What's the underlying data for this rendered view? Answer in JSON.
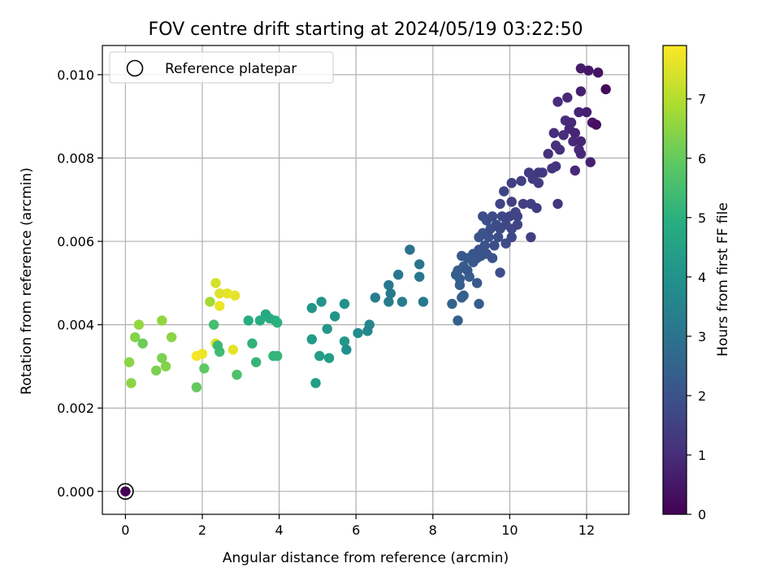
{
  "chart_data": {
    "type": "scatter",
    "title": "FOV centre drift starting at 2024/05/19 03:22:50",
    "xlabel": "Angular distance from reference (arcmin)",
    "ylabel": "Rotation from reference (arcmin)",
    "xlim": [
      -0.6,
      13.1
    ],
    "ylim": [
      -0.00055,
      0.0107
    ],
    "xticks": [
      0,
      2,
      4,
      6,
      8,
      10,
      12
    ],
    "xtick_labels": [
      "0",
      "2",
      "4",
      "6",
      "8",
      "10",
      "12"
    ],
    "yticks": [
      0.0,
      0.002,
      0.004,
      0.006,
      0.008,
      0.01
    ],
    "ytick_labels": [
      "0.000",
      "0.002",
      "0.004",
      "0.006",
      "0.008",
      "0.010"
    ],
    "grid": true,
    "legend": {
      "placement": "upper-left",
      "entries": [
        "Reference platepar"
      ]
    },
    "reference_point": {
      "name": "Reference platepar",
      "x": 0.0,
      "y": 0.0
    },
    "colorbar": {
      "label": "Hours from first FF file",
      "colormap": "viridis",
      "range": [
        0,
        7.9
      ],
      "ticks": [
        0,
        1,
        2,
        3,
        4,
        5,
        6,
        7
      ],
      "tick_labels": [
        "0",
        "1",
        "2",
        "3",
        "4",
        "5",
        "6",
        "7"
      ]
    },
    "series": [
      {
        "color_by": "hours",
        "points": [
          [
            0.0,
            0.0,
            0.0
          ],
          [
            12.5,
            0.00965,
            0.2
          ],
          [
            12.3,
            0.01005,
            0.4
          ],
          [
            12.05,
            0.0101,
            0.5
          ],
          [
            11.85,
            0.01015,
            0.6
          ],
          [
            12.25,
            0.0088,
            0.3
          ],
          [
            12.15,
            0.00885,
            0.5
          ],
          [
            12.0,
            0.0091,
            0.7
          ],
          [
            11.8,
            0.0091,
            0.8
          ],
          [
            11.85,
            0.0096,
            0.7
          ],
          [
            11.5,
            0.00945,
            0.9
          ],
          [
            11.25,
            0.00935,
            1.0
          ],
          [
            11.6,
            0.00885,
            0.9
          ],
          [
            11.45,
            0.0089,
            1.0
          ],
          [
            11.55,
            0.0087,
            0.9
          ],
          [
            11.7,
            0.0086,
            0.8
          ],
          [
            11.65,
            0.0084,
            0.9
          ],
          [
            11.85,
            0.0084,
            0.8
          ],
          [
            11.4,
            0.00855,
            1.0
          ],
          [
            11.15,
            0.0086,
            1.0
          ],
          [
            11.3,
            0.0082,
            1.1
          ],
          [
            11.2,
            0.0083,
            1.1
          ],
          [
            11.85,
            0.0081,
            0.9
          ],
          [
            11.8,
            0.0082,
            0.9
          ],
          [
            12.1,
            0.0079,
            0.7
          ],
          [
            11.7,
            0.0077,
            0.9
          ],
          [
            11.0,
            0.0081,
            1.1
          ],
          [
            11.2,
            0.0078,
            1.2
          ],
          [
            11.1,
            0.00775,
            1.2
          ],
          [
            10.85,
            0.00765,
            1.3
          ],
          [
            10.75,
            0.00765,
            1.3
          ],
          [
            10.5,
            0.00765,
            1.4
          ],
          [
            10.6,
            0.0075,
            1.4
          ],
          [
            10.75,
            0.0074,
            1.4
          ],
          [
            10.3,
            0.00745,
            1.5
          ],
          [
            10.05,
            0.0074,
            1.5
          ],
          [
            9.85,
            0.0072,
            1.6
          ],
          [
            10.35,
            0.0069,
            1.5
          ],
          [
            10.55,
            0.0069,
            1.5
          ],
          [
            10.7,
            0.0068,
            1.4
          ],
          [
            11.25,
            0.0069,
            1.2
          ],
          [
            10.05,
            0.00695,
            1.5
          ],
          [
            9.75,
            0.0069,
            1.6
          ],
          [
            10.15,
            0.0067,
            1.6
          ],
          [
            10.2,
            0.0066,
            1.6
          ],
          [
            10.0,
            0.0066,
            1.6
          ],
          [
            9.8,
            0.0066,
            1.7
          ],
          [
            9.55,
            0.0066,
            1.8
          ],
          [
            9.3,
            0.0066,
            1.9
          ],
          [
            9.4,
            0.0065,
            1.9
          ],
          [
            9.65,
            0.0064,
            1.8
          ],
          [
            9.9,
            0.0064,
            1.7
          ],
          [
            10.2,
            0.0064,
            1.6
          ],
          [
            10.05,
            0.0063,
            1.7
          ],
          [
            9.75,
            0.0063,
            1.8
          ],
          [
            9.5,
            0.0063,
            1.9
          ],
          [
            9.3,
            0.0062,
            2.0
          ],
          [
            9.7,
            0.0061,
            1.9
          ],
          [
            10.05,
            0.0061,
            1.7
          ],
          [
            9.2,
            0.0061,
            2.0
          ],
          [
            9.45,
            0.0061,
            2.0
          ],
          [
            10.55,
            0.0061,
            1.5
          ],
          [
            9.9,
            0.00595,
            1.8
          ],
          [
            9.6,
            0.0059,
            1.9
          ],
          [
            9.35,
            0.0059,
            2.0
          ],
          [
            9.2,
            0.0058,
            2.0
          ],
          [
            9.4,
            0.0057,
            2.0
          ],
          [
            9.05,
            0.0057,
            2.1
          ],
          [
            9.25,
            0.00565,
            2.1
          ],
          [
            9.55,
            0.0056,
            2.0
          ],
          [
            9.15,
            0.0056,
            2.1
          ],
          [
            8.9,
            0.0056,
            2.2
          ],
          [
            8.75,
            0.00565,
            2.2
          ],
          [
            9.05,
            0.0055,
            2.2
          ],
          [
            8.8,
            0.0054,
            2.3
          ],
          [
            8.65,
            0.0053,
            2.3
          ],
          [
            8.9,
            0.0053,
            2.2
          ],
          [
            8.6,
            0.0052,
            2.4
          ],
          [
            8.95,
            0.00515,
            2.3
          ],
          [
            8.7,
            0.0051,
            2.3
          ],
          [
            9.75,
            0.00525,
            1.9
          ],
          [
            8.7,
            0.00495,
            2.4
          ],
          [
            9.15,
            0.005,
            2.2
          ],
          [
            8.8,
            0.0047,
            2.4
          ],
          [
            8.75,
            0.00465,
            2.4
          ],
          [
            8.5,
            0.0045,
            2.5
          ],
          [
            9.2,
            0.0045,
            2.3
          ],
          [
            8.65,
            0.0041,
            2.4
          ],
          [
            7.4,
            0.0058,
            3.0
          ],
          [
            7.65,
            0.00545,
            3.0
          ],
          [
            7.1,
            0.0052,
            3.1
          ],
          [
            7.65,
            0.00515,
            3.1
          ],
          [
            6.85,
            0.00495,
            3.2
          ],
          [
            6.9,
            0.00475,
            3.2
          ],
          [
            6.5,
            0.00465,
            3.3
          ],
          [
            6.85,
            0.00455,
            3.3
          ],
          [
            7.2,
            0.00455,
            3.3
          ],
          [
            7.75,
            0.00455,
            3.2
          ],
          [
            6.35,
            0.004,
            3.6
          ],
          [
            6.3,
            0.00385,
            3.7
          ],
          [
            6.05,
            0.0038,
            3.8
          ],
          [
            5.75,
            0.0034,
            3.9
          ],
          [
            5.7,
            0.0045,
            4.0
          ],
          [
            5.1,
            0.00455,
            4.1
          ],
          [
            4.85,
            0.0044,
            4.1
          ],
          [
            5.45,
            0.0042,
            4.1
          ],
          [
            5.25,
            0.0039,
            4.2
          ],
          [
            4.85,
            0.00365,
            4.3
          ],
          [
            5.7,
            0.0036,
            4.2
          ],
          [
            5.05,
            0.00325,
            4.4
          ],
          [
            5.3,
            0.0032,
            4.4
          ],
          [
            4.95,
            0.0026,
            4.4
          ],
          [
            3.65,
            0.00425,
            4.8
          ],
          [
            3.5,
            0.0041,
            4.9
          ],
          [
            3.75,
            0.00415,
            4.9
          ],
          [
            3.2,
            0.0041,
            4.9
          ],
          [
            3.9,
            0.0041,
            5.0
          ],
          [
            3.95,
            0.00405,
            5.0
          ],
          [
            3.3,
            0.00355,
            5.1
          ],
          [
            3.85,
            0.00325,
            5.2
          ],
          [
            3.95,
            0.00325,
            5.2
          ],
          [
            3.4,
            0.0031,
            5.2
          ],
          [
            2.4,
            0.0035,
            5.3
          ],
          [
            2.45,
            0.00335,
            5.4
          ],
          [
            2.3,
            0.004,
            5.5
          ],
          [
            2.9,
            0.0028,
            5.6
          ],
          [
            2.05,
            0.00295,
            5.9
          ],
          [
            1.85,
            0.0025,
            6.0
          ],
          [
            0.45,
            0.00355,
            6.1
          ],
          [
            0.8,
            0.0029,
            6.3
          ],
          [
            0.95,
            0.0032,
            6.3
          ],
          [
            1.05,
            0.003,
            6.4
          ],
          [
            0.25,
            0.0037,
            6.4
          ],
          [
            0.1,
            0.0031,
            6.5
          ],
          [
            0.15,
            0.0026,
            6.5
          ],
          [
            1.2,
            0.0037,
            6.5
          ],
          [
            0.35,
            0.004,
            6.6
          ],
          [
            0.95,
            0.0041,
            6.6
          ],
          [
            2.2,
            0.00455,
            6.8
          ],
          [
            2.35,
            0.005,
            7.4
          ],
          [
            2.45,
            0.00475,
            7.5
          ],
          [
            2.65,
            0.00475,
            7.6
          ],
          [
            2.85,
            0.0047,
            7.6
          ],
          [
            2.45,
            0.00445,
            7.7
          ],
          [
            2.35,
            0.00355,
            7.5
          ],
          [
            2.8,
            0.0034,
            7.6
          ],
          [
            1.85,
            0.00325,
            7.8
          ],
          [
            2.0,
            0.0033,
            7.7
          ]
        ]
      }
    ]
  }
}
